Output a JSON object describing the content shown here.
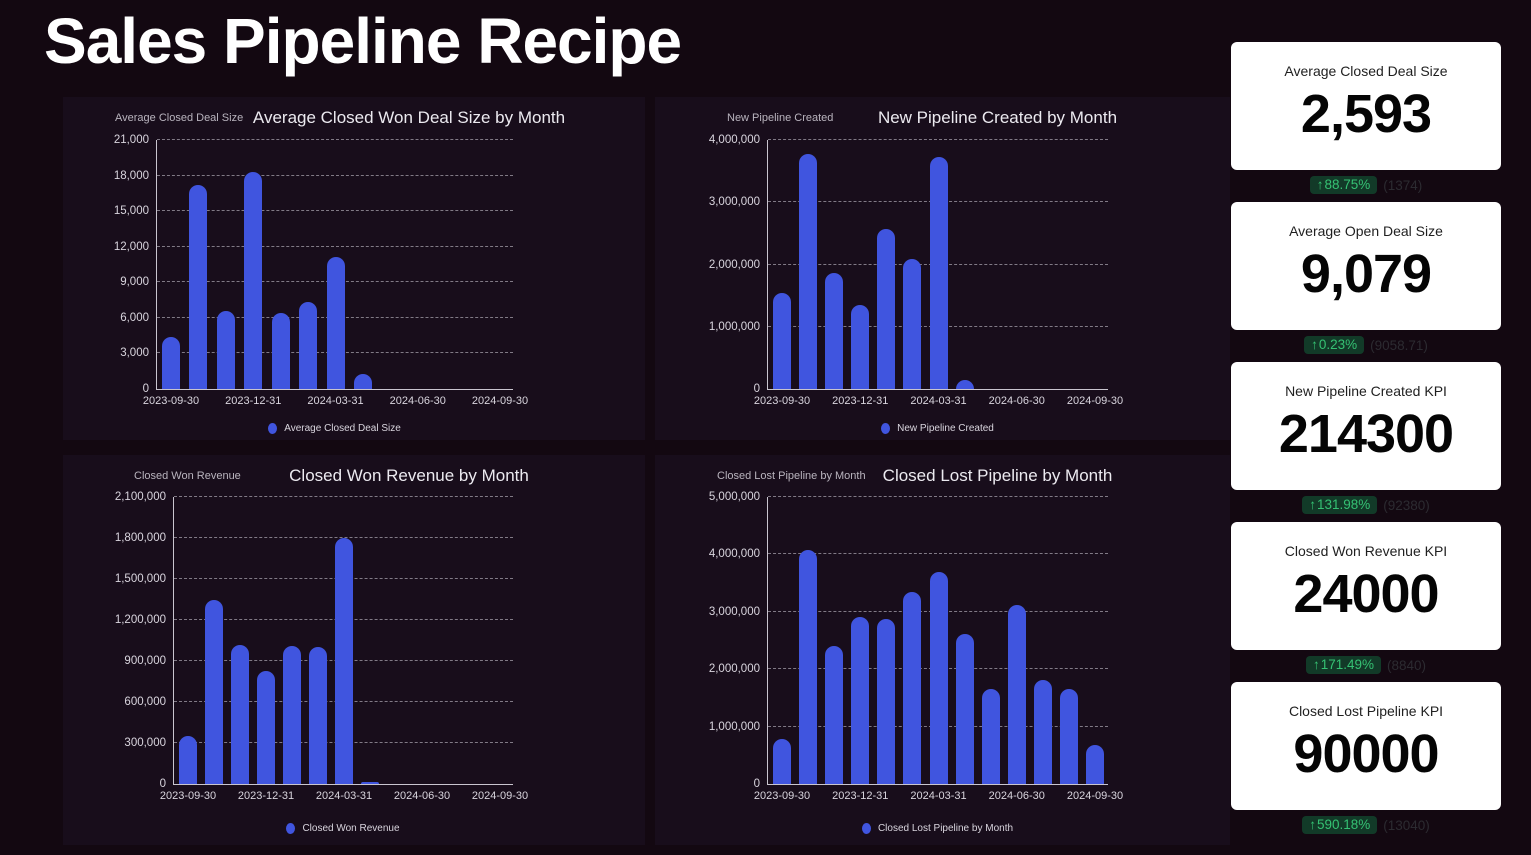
{
  "page": {
    "title": "Sales Pipeline Recipe"
  },
  "chart_data": [
    {
      "type": "bar",
      "title": "Average Closed Won Deal Size by Month",
      "axis_label": "Average Closed Deal Size",
      "legend": "Average Closed Deal Size",
      "ylim": [
        0,
        21000
      ],
      "ymax": 21000,
      "yticks": [
        {
          "label": "0",
          "value": 0
        },
        {
          "label": "3,000",
          "value": 3000
        },
        {
          "label": "6,000",
          "value": 6000
        },
        {
          "label": "9,000",
          "value": 9000
        },
        {
          "label": "12,000",
          "value": 12000
        },
        {
          "label": "15,000",
          "value": 15000
        },
        {
          "label": "18,000",
          "value": 18000
        },
        {
          "label": "21,000",
          "value": 21000
        }
      ],
      "x_ticks": [
        "2023-09-30",
        "2023-12-31",
        "2024-03-31",
        "2024-06-30",
        "2024-09-30"
      ],
      "categories": [
        "2023-09",
        "2023-10",
        "2023-11",
        "2023-12",
        "2024-01",
        "2024-02",
        "2024-03",
        "2024-04"
      ],
      "values": [
        4400,
        17200,
        6600,
        18300,
        6400,
        7300,
        11100,
        1300
      ],
      "grid": true,
      "legend_position": "bottom",
      "bar_color": "#4055df"
    },
    {
      "type": "bar",
      "title": "New Pipeline Created by Month",
      "axis_label": "New Pipeline Created",
      "legend": "New Pipeline Created",
      "ylim": [
        0,
        4000000
      ],
      "ymax": 4000000,
      "yticks": [
        {
          "label": "0",
          "value": 0
        },
        {
          "label": "1,000,000",
          "value": 1000000
        },
        {
          "label": "2,000,000",
          "value": 2000000
        },
        {
          "label": "3,000,000",
          "value": 3000000
        },
        {
          "label": "4,000,000",
          "value": 4000000
        }
      ],
      "x_ticks": [
        "2023-09-30",
        "2023-12-31",
        "2024-03-31",
        "2024-06-30",
        "2024-09-30"
      ],
      "categories": [
        "2023-09",
        "2023-10",
        "2023-11",
        "2023-12",
        "2024-01",
        "2024-02",
        "2024-03",
        "2024-04"
      ],
      "values": [
        1550000,
        3780000,
        1870000,
        1350000,
        2570000,
        2090000,
        3720000,
        140000
      ],
      "grid": true,
      "legend_position": "bottom",
      "bar_color": "#4055df"
    },
    {
      "type": "bar",
      "title": "Closed Won Revenue by Month",
      "axis_label": "Closed Won Revenue",
      "legend": "Closed Won Revenue",
      "ylim": [
        0,
        2100000
      ],
      "ymax": 2100000,
      "yticks": [
        {
          "label": "0",
          "value": 0
        },
        {
          "label": "300,000",
          "value": 300000
        },
        {
          "label": "600,000",
          "value": 600000
        },
        {
          "label": "900,000",
          "value": 900000
        },
        {
          "label": "1,200,000",
          "value": 1200000
        },
        {
          "label": "1,500,000",
          "value": 1500000
        },
        {
          "label": "1,800,000",
          "value": 1800000
        },
        {
          "label": "2,100,000",
          "value": 2100000
        }
      ],
      "x_ticks": [
        "2023-09-30",
        "2023-12-31",
        "2024-03-31",
        "2024-06-30",
        "2024-09-30"
      ],
      "categories": [
        "2023-09",
        "2023-10",
        "2023-11",
        "2023-12",
        "2024-01",
        "2024-02",
        "2024-03",
        "2024-04"
      ],
      "values": [
        350000,
        1350000,
        1020000,
        830000,
        1010000,
        1000000,
        1800000,
        12000
      ],
      "grid": true,
      "legend_position": "bottom",
      "bar_color": "#4055df"
    },
    {
      "type": "bar",
      "title": "Closed Lost Pipeline by Month",
      "axis_label": "Closed Lost Pipeline by Month",
      "legend": "Closed Lost Pipeline by Month",
      "ylim": [
        0,
        5000000
      ],
      "ymax": 5000000,
      "yticks": [
        {
          "label": "0",
          "value": 0
        },
        {
          "label": "1,000,000",
          "value": 1000000
        },
        {
          "label": "2,000,000",
          "value": 2000000
        },
        {
          "label": "3,000,000",
          "value": 3000000
        },
        {
          "label": "4,000,000",
          "value": 4000000
        },
        {
          "label": "5,000,000",
          "value": 5000000
        }
      ],
      "x_ticks": [
        "2023-09-30",
        "2023-12-31",
        "2024-03-31",
        "2024-06-30",
        "2024-09-30"
      ],
      "categories": [
        "2023-09",
        "2023-10",
        "2023-11",
        "2023-12",
        "2024-01",
        "2024-02",
        "2024-03",
        "2024-04",
        "2024-05",
        "2024-06",
        "2024-07",
        "2024-08",
        "2024-09"
      ],
      "values": [
        790000,
        4080000,
        2400000,
        2910000,
        2880000,
        3350000,
        3700000,
        2610000,
        1660000,
        3120000,
        1810000,
        1660000,
        680000
      ],
      "grid": true,
      "legend_position": "bottom",
      "bar_color": "#4055df"
    }
  ],
  "kpis": [
    {
      "title": "Average Closed Deal Size",
      "value": "2,593",
      "arrow": "↑",
      "pct": "88.75%",
      "baseline": "(1374)"
    },
    {
      "title": "Average Open Deal Size",
      "value": "9,079",
      "arrow": "↑",
      "pct": "0.23%",
      "baseline": "(9058.71)"
    },
    {
      "title": "New Pipeline Created KPI",
      "value": "214300",
      "arrow": "↑",
      "pct": "131.98%",
      "baseline": "(92380)"
    },
    {
      "title": "Closed Won Revenue KPI",
      "value": "24000",
      "arrow": "↑",
      "pct": "171.49%",
      "baseline": "(8840)"
    },
    {
      "title": "Closed Lost Pipeline KPI",
      "value": "90000",
      "arrow": "↑",
      "pct": "590.18%",
      "baseline": "(13040)"
    }
  ],
  "colors": {
    "page_bg": "#130811",
    "panel_bg": "#180d1b",
    "bar": "#4055df",
    "badge_bg": "#123a28",
    "badge_text": "#35c173"
  }
}
